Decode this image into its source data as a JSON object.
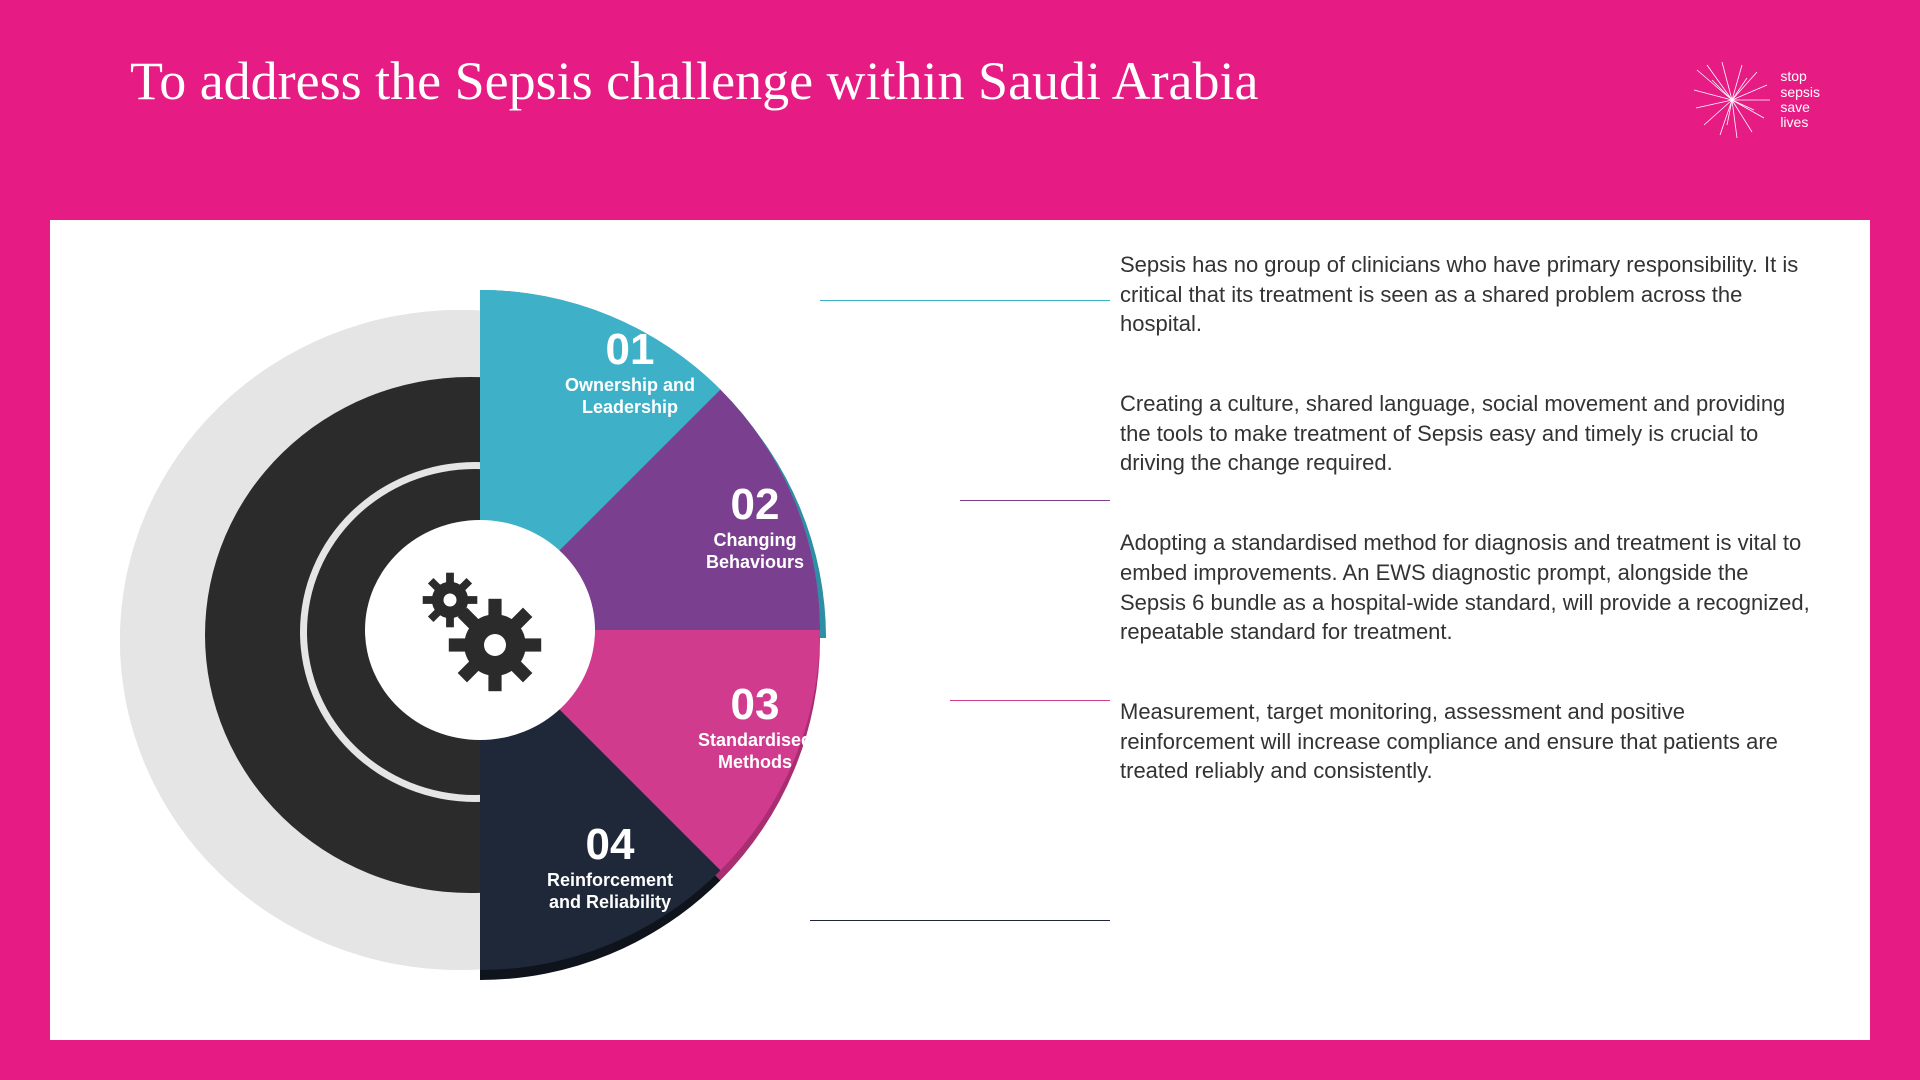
{
  "header": {
    "title": "To address the Sepsis challenge within Saudi Arabia",
    "logo_lines": [
      "stop",
      "sepsis",
      "save",
      "lives"
    ]
  },
  "diagram": {
    "type": "infographic-pie-quarters",
    "background_color": "#ffffff",
    "ring_outer_color": "#e5e5e5",
    "ring_inner_color": "#2b2b2b",
    "center_color": "#ffffff",
    "center_icon": "gears",
    "slices": [
      {
        "num": "01",
        "label": "Ownership and\nLeadership",
        "color": "#3eb1c8",
        "edge_color": "#2d8fa3"
      },
      {
        "num": "02",
        "label": "Changing\nBehaviours",
        "color": "#7b3f8f",
        "edge_color": "#5e2f6d"
      },
      {
        "num": "03",
        "label": "Standardised\nMethods",
        "color": "#d13b8e",
        "edge_color": "#a82e71"
      },
      {
        "num": "04",
        "label": "Reinforcement\nand Reliability",
        "color": "#1e2838",
        "edge_color": "#0f141c"
      }
    ]
  },
  "descriptions": [
    {
      "text": "Sepsis has no group of clinicians who have primary responsibility. It is critical that its treatment is seen as a shared problem across the hospital.",
      "connector_color": "#3eb1c8"
    },
    {
      "text": "Creating a culture, shared language, social movement and providing the tools to make treatment of Sepsis easy and timely is crucial to driving the change required.",
      "connector_color": "#7b3f8f"
    },
    {
      "text": "Adopting a standardised method for diagnosis and treatment is vital to embed improvements. An EWS diagnostic prompt, alongside the Sepsis 6 bundle as a hospital-wide standard, will provide a recognized, repeatable standard for treatment.",
      "connector_color": "#d13b8e"
    },
    {
      "text": "Measurement, target monitoring, assessment and positive reinforcement will increase compliance and ensure that patients are treated reliably and consistently.",
      "connector_color": "#1e2838"
    }
  ],
  "colors": {
    "page_bg": "#e61b83",
    "panel_bg": "#ffffff",
    "title_color": "#ffffff",
    "body_text": "#333333"
  },
  "typography": {
    "title_fontsize": 54,
    "desc_fontsize": 22,
    "slice_num_fontsize": 44,
    "slice_name_fontsize": 18
  }
}
